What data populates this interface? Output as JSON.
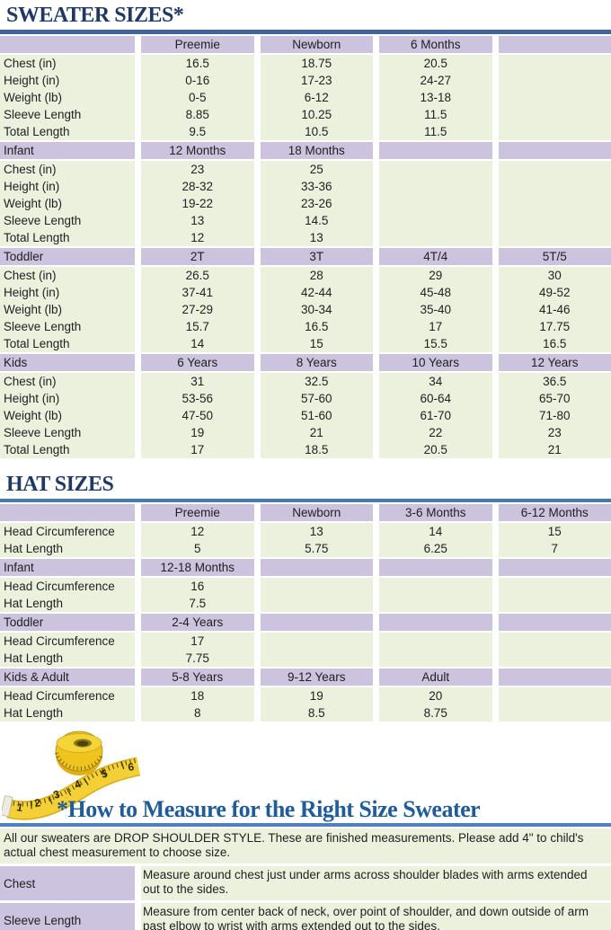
{
  "titles": {
    "sweater": "SWEATER SIZES*",
    "hat": "HAT SIZES",
    "measure": "*How to Measure for the Right Size Sweater"
  },
  "theme": {
    "navy": "#1F3864",
    "hblue": "#1F5C99",
    "rule1": "#3F639B",
    "rule2": "#4678B2",
    "rule3": "#4E81BD",
    "purple": "#CCC3DF",
    "green": "#ECF1DE",
    "tape_yellow": "#EFC41F"
  },
  "icons": {
    "tape": "tape-measure-icon"
  },
  "sweater_table": {
    "sections": [
      {
        "label": "",
        "cols": [
          "Preemie",
          "Newborn",
          "6 Months",
          ""
        ],
        "rows": [
          {
            "label": "Chest (in)",
            "values": [
              "16.5",
              "18.75",
              "20.5",
              ""
            ]
          },
          {
            "label": "Height (in)",
            "values": [
              "0-16",
              "17-23",
              "24-27",
              ""
            ]
          },
          {
            "label": "Weight (lb)",
            "values": [
              "0-5",
              "6-12",
              "13-18",
              ""
            ]
          },
          {
            "label": "Sleeve Length",
            "values": [
              "8.85",
              "10.25",
              "11.5",
              ""
            ]
          },
          {
            "label": "Total Length",
            "values": [
              "9.5",
              "10.5",
              "11.5",
              ""
            ]
          }
        ]
      },
      {
        "label": "Infant",
        "cols": [
          "12 Months",
          "18 Months",
          "",
          ""
        ],
        "rows": [
          {
            "label": "Chest (in)",
            "values": [
              "23",
              "25",
              "",
              ""
            ]
          },
          {
            "label": "Height (in)",
            "values": [
              "28-32",
              "33-36",
              "",
              ""
            ]
          },
          {
            "label": "Weight (lb)",
            "values": [
              "19-22",
              "23-26",
              "",
              ""
            ]
          },
          {
            "label": "Sleeve Length",
            "values": [
              "13",
              "14.5",
              "",
              ""
            ]
          },
          {
            "label": "Total Length",
            "values": [
              "12",
              "13",
              "",
              ""
            ]
          }
        ]
      },
      {
        "label": "Toddler",
        "cols": [
          "2T",
          "3T",
          "4T/4",
          "5T/5"
        ],
        "rows": [
          {
            "label": "Chest (in)",
            "values": [
              "26.5",
              "28",
              "29",
              "30"
            ]
          },
          {
            "label": "Height (in)",
            "values": [
              "37-41",
              "42-44",
              "45-48",
              "49-52"
            ]
          },
          {
            "label": "Weight (lb)",
            "values": [
              "27-29",
              "30-34",
              "35-40",
              "41-46"
            ]
          },
          {
            "label": "Sleeve Length",
            "values": [
              "15.7",
              "16.5",
              "17",
              "17.75"
            ]
          },
          {
            "label": "Total Length",
            "values": [
              "14",
              "15",
              "15.5",
              "16.5"
            ]
          }
        ]
      },
      {
        "label": "Kids",
        "cols": [
          "6 Years",
          "8 Years",
          "10 Years",
          "12 Years"
        ],
        "rows": [
          {
            "label": "Chest (in)",
            "values": [
              "31",
              "32.5",
              "34",
              "36.5"
            ]
          },
          {
            "label": "Height (in)",
            "values": [
              "53-56",
              "57-60",
              "60-64",
              "65-70"
            ]
          },
          {
            "label": "Weight (lb)",
            "values": [
              "47-50",
              "51-60",
              "61-70",
              "71-80"
            ]
          },
          {
            "label": "Sleeve Length",
            "values": [
              "19",
              "21",
              "22",
              "23"
            ]
          },
          {
            "label": "Total Length",
            "values": [
              "17",
              "18.5",
              "20.5",
              "21"
            ]
          }
        ]
      }
    ]
  },
  "hat_table": {
    "sections": [
      {
        "label": "",
        "cols": [
          "Preemie",
          "Newborn",
          "3-6 Months",
          "6-12 Months"
        ],
        "rows": [
          {
            "label": "Head Circumference",
            "values": [
              "12",
              "13",
              "14",
              "15"
            ]
          },
          {
            "label": "Hat Length",
            "values": [
              "5",
              "5.75",
              "6.25",
              "7"
            ]
          }
        ]
      },
      {
        "label": "Infant",
        "cols": [
          "12-18 Months",
          "",
          "",
          ""
        ],
        "rows": [
          {
            "label": "Head Circumference",
            "values": [
              "16",
              "",
              "",
              ""
            ]
          },
          {
            "label": "Hat Length",
            "values": [
              "7.5",
              "",
              "",
              ""
            ]
          }
        ]
      },
      {
        "label": "Toddler",
        "cols": [
          "2-4 Years",
          "",
          "",
          ""
        ],
        "rows": [
          {
            "label": "Head Circumference",
            "values": [
              "17",
              "",
              "",
              ""
            ]
          },
          {
            "label": "Hat Length",
            "values": [
              "7.75",
              "",
              "",
              ""
            ]
          }
        ]
      },
      {
        "label": "Kids & Adult",
        "cols": [
          "5-8 Years",
          "9-12 Years",
          "Adult",
          ""
        ],
        "rows": [
          {
            "label": "Head Circumference",
            "values": [
              "18",
              "19",
              "20",
              ""
            ]
          },
          {
            "label": "Hat Length",
            "values": [
              "8",
              "8.5",
              "8.75",
              ""
            ]
          }
        ]
      }
    ]
  },
  "measure": {
    "intro": "All our sweaters are DROP SHOULDER STYLE.  These are finished measurements.  Please add 4\" to child's actual chest measurement to choose size.",
    "rows": [
      {
        "label": "Chest",
        "text": "Measure around chest just under arms across shoulder blades with arms extended out to the sides."
      },
      {
        "label": "Sleeve Length",
        "text": "Measure from center back of neck, over point of shoulder, and down outside of arm past elbow to wrist with arms extended out to the sides."
      }
    ],
    "tape_numbers": [
      "1",
      "2",
      "3",
      "4",
      "5",
      "6"
    ]
  }
}
